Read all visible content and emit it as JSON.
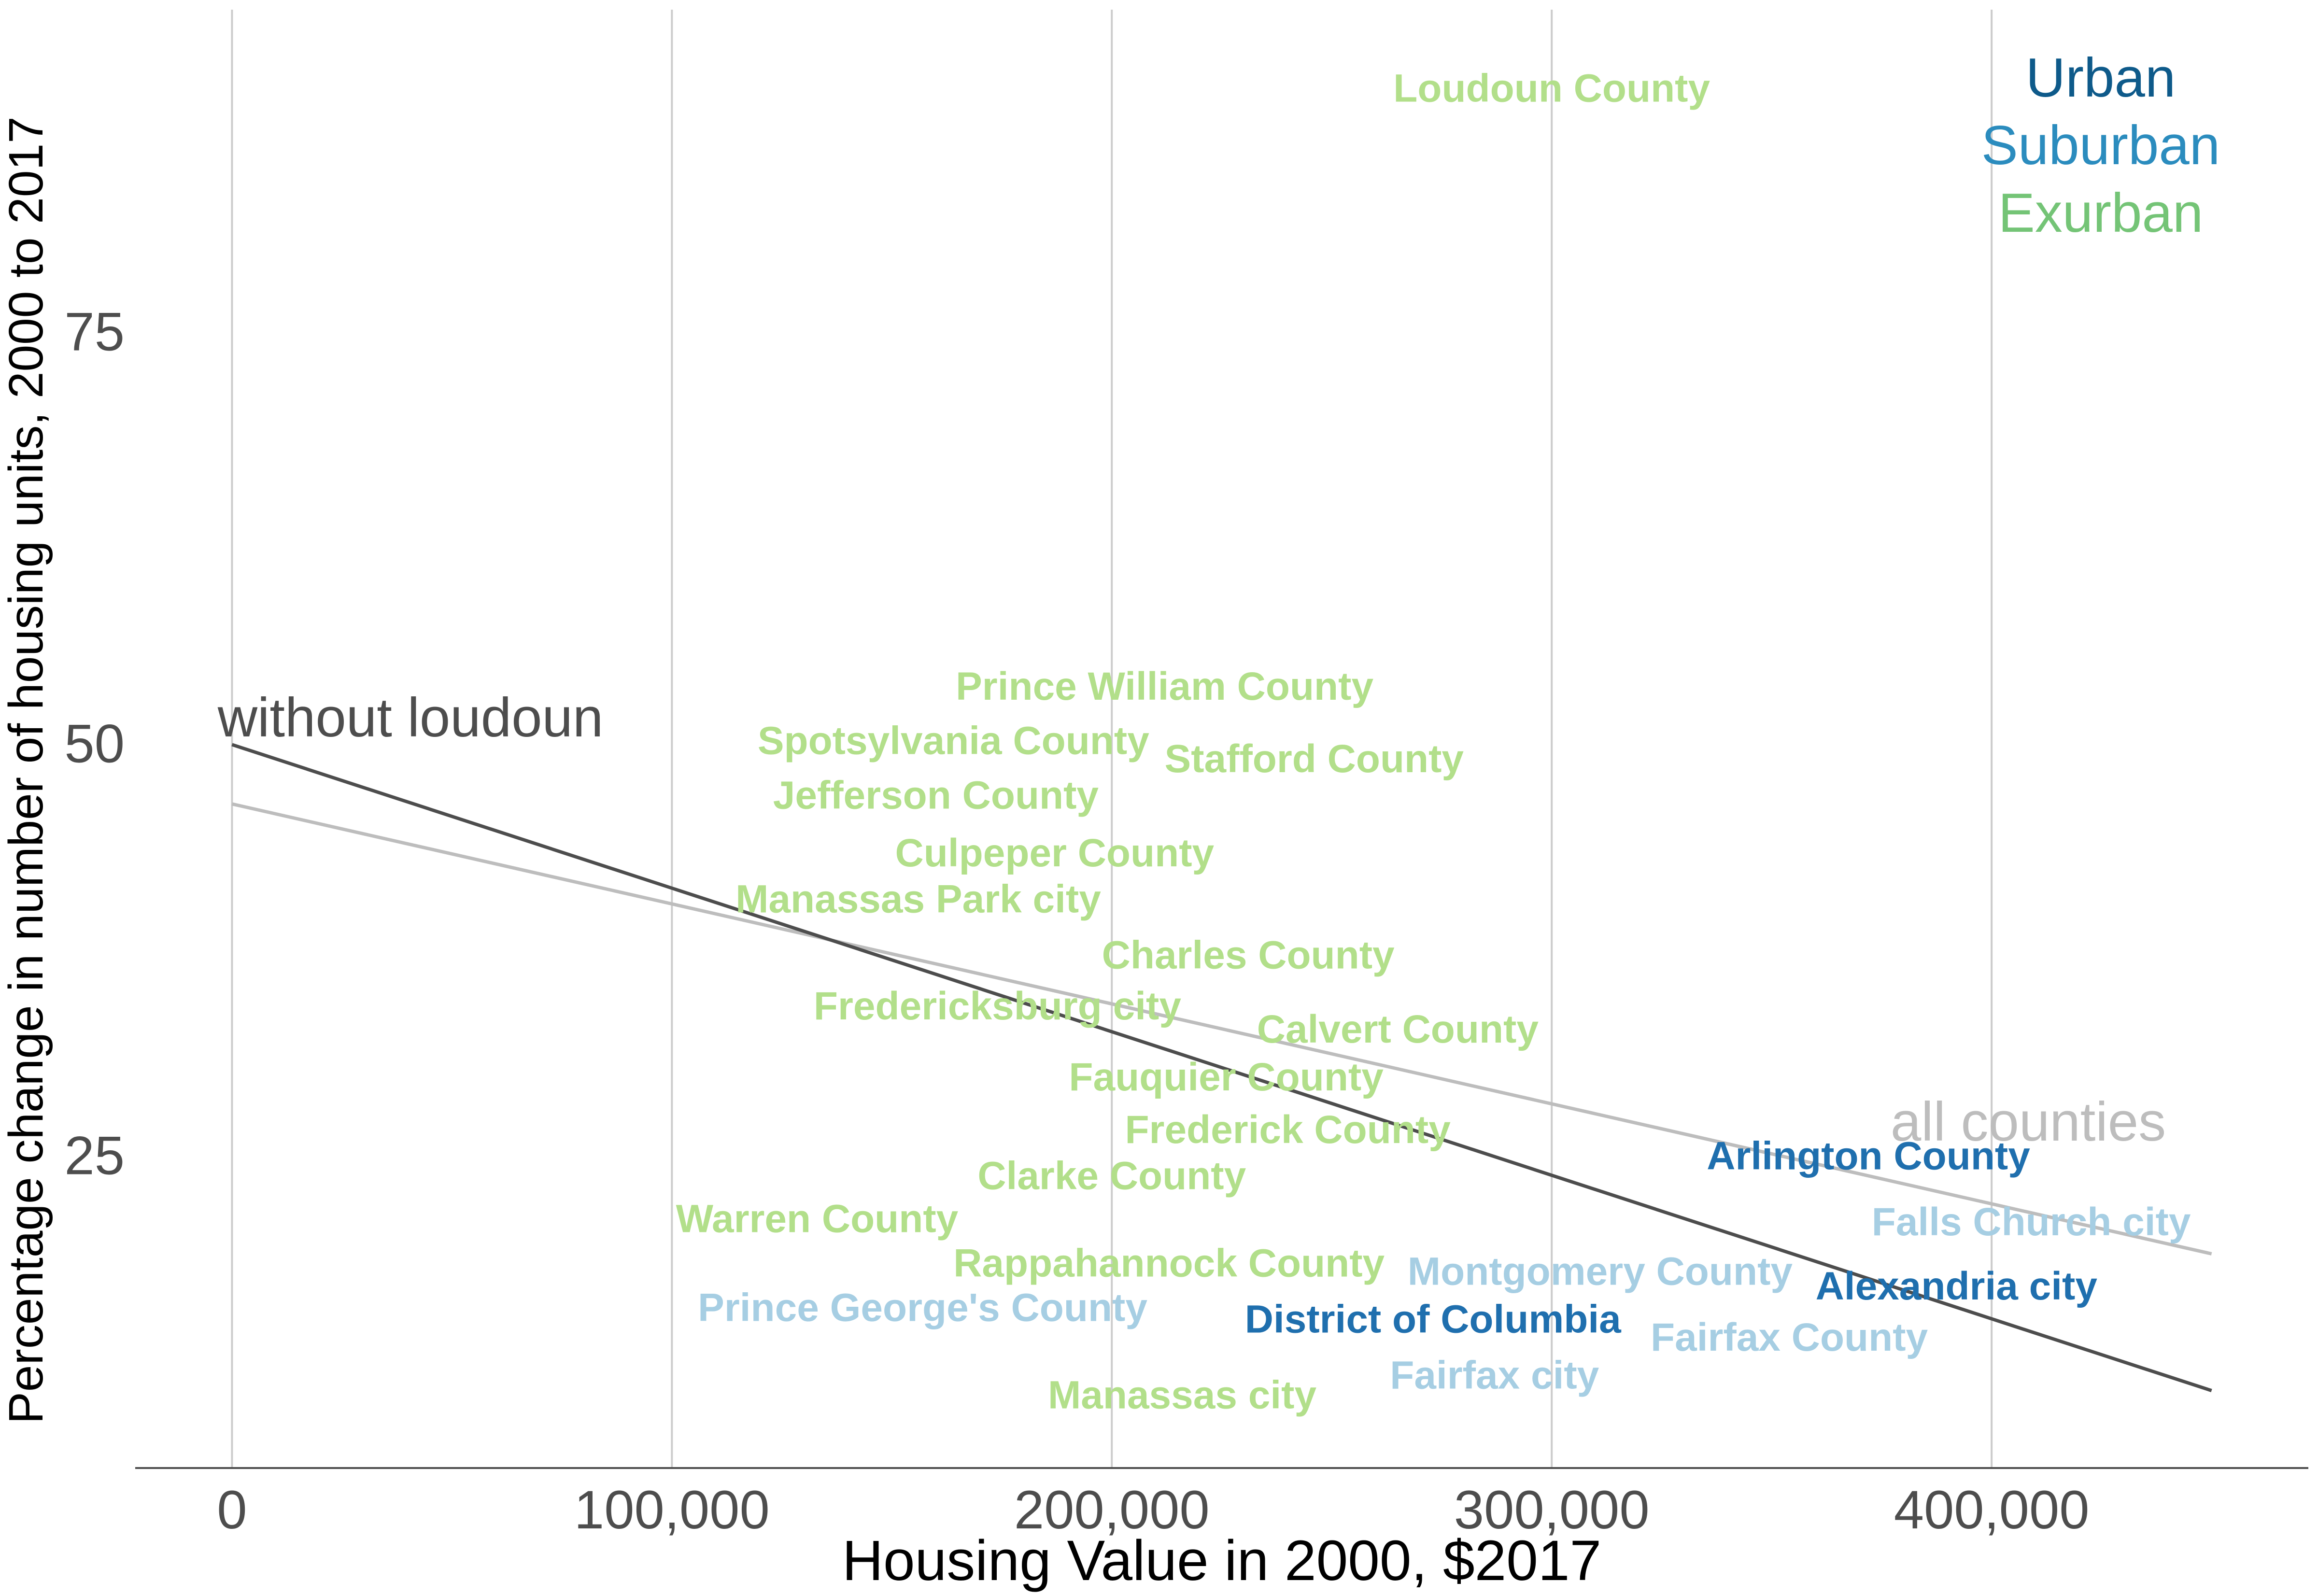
{
  "chart_data": {
    "type": "scatter",
    "title": "",
    "xlabel": "Housing Value in 2000, $2017",
    "ylabel": "Percentage change in number of housing units, 2000 to 2017",
    "xlim": [
      -22000,
      472000
    ],
    "ylim": [
      6,
      94.5
    ],
    "x_ticks": [
      0,
      100000,
      200000,
      300000,
      400000
    ],
    "x_tick_labels": [
      "0",
      "100,000",
      "200,000",
      "300,000",
      "400,000"
    ],
    "y_ticks": [
      25,
      50,
      75
    ],
    "y_tick_labels": [
      "25",
      "50",
      "75"
    ],
    "grid": "vertical",
    "legend": {
      "placement": "top-right",
      "entries": [
        {
          "name": "Urban",
          "color": "#0e5a8a"
        },
        {
          "name": "Suburban",
          "color": "#2b8cbe"
        },
        {
          "name": "Exurban",
          "color": "#74c476"
        }
      ]
    },
    "category_colors": {
      "urban_point": "#1f6fae",
      "suburban_point": "#a6cee3",
      "exurban_point": "#b2df8a"
    },
    "points": [
      {
        "label": "Loudoun County",
        "x": 300000,
        "y": 89.8,
        "category": "exurban_point"
      },
      {
        "label": "Prince William County",
        "x": 212000,
        "y": 53.5,
        "category": "exurban_point"
      },
      {
        "label": "Spotsylvania County",
        "x": 164000,
        "y": 50.2,
        "category": "exurban_point"
      },
      {
        "label": "Stafford County",
        "x": 246000,
        "y": 49.1,
        "category": "exurban_point"
      },
      {
        "label": "Jefferson County",
        "x": 160000,
        "y": 46.9,
        "category": "exurban_point"
      },
      {
        "label": "Culpeper County",
        "x": 187000,
        "y": 43.4,
        "category": "exurban_point"
      },
      {
        "label": "Manassas Park city",
        "x": 156000,
        "y": 40.6,
        "category": "exurban_point"
      },
      {
        "label": "Charles County",
        "x": 231000,
        "y": 37.2,
        "category": "exurban_point"
      },
      {
        "label": "Fredericksburg city",
        "x": 174000,
        "y": 34.1,
        "category": "exurban_point"
      },
      {
        "label": "Calvert County",
        "x": 265000,
        "y": 32.7,
        "category": "exurban_point"
      },
      {
        "label": "Fauquier County",
        "x": 226000,
        "y": 29.8,
        "category": "exurban_point"
      },
      {
        "label": "Frederick County",
        "x": 240000,
        "y": 26.6,
        "category": "exurban_point"
      },
      {
        "label": "Clarke County",
        "x": 200000,
        "y": 23.8,
        "category": "exurban_point"
      },
      {
        "label": "Warren County",
        "x": 133000,
        "y": 21.2,
        "category": "exurban_point"
      },
      {
        "label": "Rappahannock County",
        "x": 213000,
        "y": 18.5,
        "category": "exurban_point"
      },
      {
        "label": "Manassas city",
        "x": 216000,
        "y": 10.5,
        "category": "exurban_point"
      },
      {
        "label": "Arlington County",
        "x": 372000,
        "y": 25.0,
        "category": "urban_point"
      },
      {
        "label": "Alexandria city",
        "x": 392000,
        "y": 17.1,
        "category": "urban_point"
      },
      {
        "label": "District of Columbia",
        "x": 273000,
        "y": 15.1,
        "category": "urban_point"
      },
      {
        "label": "Falls Church city",
        "x": 409000,
        "y": 21.0,
        "category": "suburban_point"
      },
      {
        "label": "Montgomery County",
        "x": 311000,
        "y": 18.0,
        "category": "suburban_point"
      },
      {
        "label": "Fairfax County",
        "x": 354000,
        "y": 14.0,
        "category": "suburban_point"
      },
      {
        "label": "Prince George's County",
        "x": 157000,
        "y": 15.8,
        "category": "suburban_point"
      },
      {
        "label": "Fairfax city",
        "x": 287000,
        "y": 11.7,
        "category": "suburban_point"
      }
    ],
    "trend_lines": [
      {
        "name": "without loudoun",
        "x": [
          0,
          450000
        ],
        "y": [
          49.9,
          10.7
        ],
        "color": "#4d4d4d"
      },
      {
        "name": "all counties",
        "x": [
          0,
          450000
        ],
        "y": [
          46.3,
          19.0
        ],
        "color": "#bdbdbd"
      }
    ]
  }
}
